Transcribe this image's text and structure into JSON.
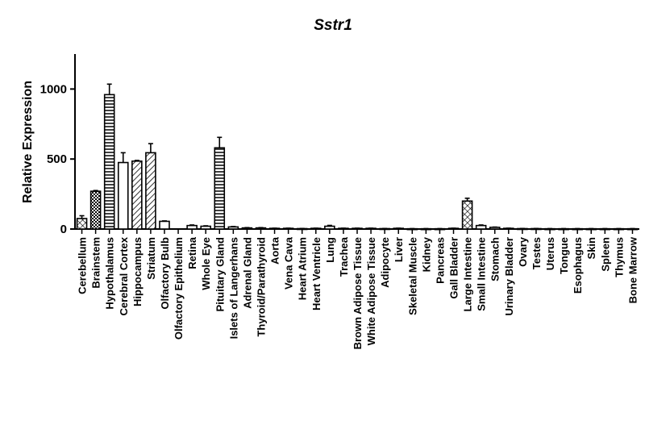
{
  "chart_data": {
    "type": "bar",
    "title": "Sstr1",
    "xlabel": "",
    "ylabel": "Relative Expression",
    "ylim": [
      0,
      1250
    ],
    "yticks": [
      0,
      500,
      1000
    ],
    "grid": false,
    "legend": "none",
    "categories": [
      "Cerebellum",
      "Brainstem",
      "Hypothalamus",
      "Cerebral Cortex",
      "Hippocampus",
      "Striatum",
      "Olfactory Bulb",
      "Olfactory Epithelium",
      "Retina",
      "Whole Eye",
      "Pituitary Gland",
      "Islets of Langerhans",
      "Adrenal Gland",
      "Thyroid/Parathyroid",
      "Aorta",
      "Vena Cava",
      "Heart Atrium",
      "Heart Ventricle",
      "Lung",
      "Trachea",
      "Brown Adipose Tissue",
      "White Adipose Tissue",
      "Adipocyte",
      "Liver",
      "Skeletal Muscle",
      "Kidney",
      "Pancreas",
      "Gall Bladder",
      "Large Intestine",
      "Small Intestine",
      "Stomach",
      "Urinary Bladder",
      "Ovary",
      "Testes",
      "Uterus",
      "Tongue",
      "Esophagus",
      "Skin",
      "Spleen",
      "Thymus",
      "Bone Marrow"
    ],
    "values": [
      75,
      270,
      960,
      475,
      485,
      545,
      55,
      0,
      25,
      20,
      580,
      15,
      8,
      8,
      5,
      5,
      3,
      5,
      20,
      5,
      5,
      5,
      3,
      5,
      2,
      2,
      2,
      5,
      200,
      25,
      12,
      5,
      3,
      3,
      2,
      2,
      2,
      2,
      2,
      2,
      2
    ],
    "errors": [
      20,
      5,
      75,
      70,
      5,
      65,
      3,
      0,
      4,
      3,
      75,
      3,
      2,
      2,
      1,
      1,
      1,
      1,
      6,
      1,
      1,
      1,
      1,
      1,
      1,
      1,
      1,
      1,
      20,
      4,
      2,
      1,
      1,
      1,
      1,
      1,
      1,
      1,
      1,
      1,
      1
    ],
    "patterns": [
      "crosshatch",
      "checker",
      "hlines",
      "none",
      "diagonal",
      "diagonal",
      "none",
      "none",
      "none",
      "none",
      "hlines",
      "none",
      "none",
      "none",
      "none",
      "none",
      "none",
      "none",
      "none",
      "none",
      "none",
      "none",
      "none",
      "none",
      "none",
      "none",
      "none",
      "none",
      "crosshatch",
      "none",
      "none",
      "none",
      "none",
      "none",
      "none",
      "none",
      "none",
      "none",
      "none",
      "none",
      "none"
    ]
  }
}
